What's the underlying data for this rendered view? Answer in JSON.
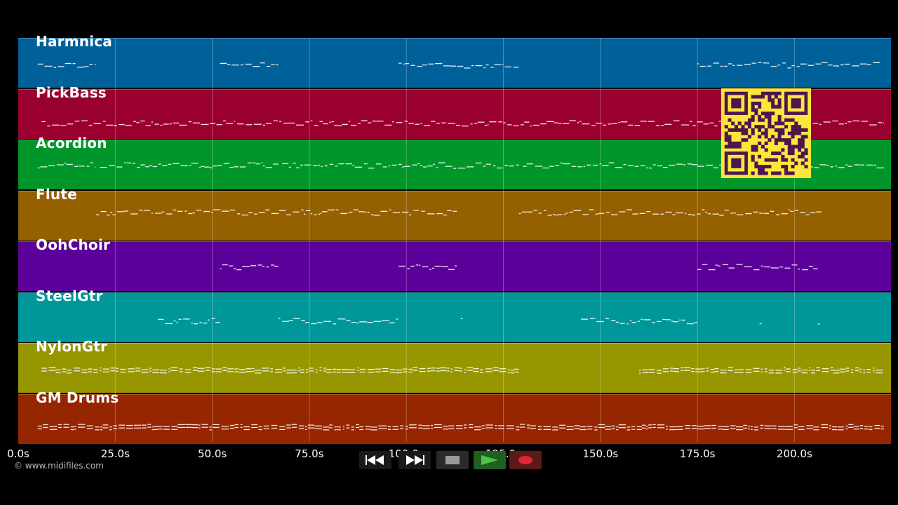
{
  "tracks": [
    {
      "name": "Harmnica",
      "color": "#00609a"
    },
    {
      "name": "PickBass",
      "color": "#9a002f"
    },
    {
      "name": "Acordion",
      "color": "#00962a"
    },
    {
      "name": "Flute",
      "color": "#956000"
    },
    {
      "name": "OohChoir",
      "color": "#5c009a"
    },
    {
      "name": "SteelGtr",
      "color": "#00979a"
    },
    {
      "name": "NylonGtr",
      "color": "#969600"
    },
    {
      "name": "GM Drums",
      "color": "#952600"
    }
  ],
  "time_axis": {
    "ticks": [
      "0.0s",
      "25.0s",
      "50.0s",
      "75.0s",
      "100.0s",
      "125.0s",
      "150.0s",
      "175.0s",
      "200.0s"
    ],
    "max_seconds": 225
  },
  "copyright": "© www.midifiles.com",
  "transport": {
    "rewind_icon": "rewind-icon",
    "forward_icon": "fast-forward-icon",
    "stop_icon": "stop-icon",
    "play_icon": "play-icon",
    "record_icon": "record-icon",
    "colors": {
      "play": "#2f8f2f",
      "record": "#e0273a",
      "stop": "#888888"
    }
  },
  "overlay": {
    "qr_color": "#ffe53a",
    "qr_dark": "#4a1850"
  }
}
